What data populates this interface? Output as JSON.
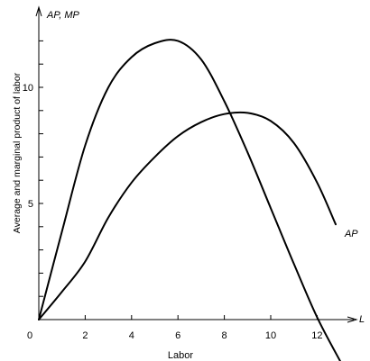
{
  "chart_data": {
    "type": "line",
    "title": "",
    "xlabel": "Labor",
    "ylabel": "Average and marginal product of labor",
    "x_axis_symbol": "L",
    "y_axis_symbol": "AP, MP",
    "origin_label": "0",
    "xlim": [
      0,
      14
    ],
    "ylim": [
      0,
      13
    ],
    "x_ticks": [
      2,
      4,
      6,
      8,
      10,
      12
    ],
    "x_tick_labels": [
      "2",
      "4",
      "6",
      "8",
      "10",
      "12"
    ],
    "y_ticks": [
      1,
      2,
      3,
      4,
      5,
      6,
      7,
      8,
      9,
      10,
      11,
      12
    ],
    "y_tick_labels": [
      "",
      "",
      "",
      "",
      "5",
      "",
      "",
      "",
      "",
      "10",
      "",
      ""
    ],
    "grid": false,
    "series": [
      {
        "name": "MP",
        "x": [
          0,
          1,
          2,
          3,
          4,
          5,
          6,
          7,
          8,
          9,
          10,
          11,
          12,
          13
        ],
        "y": [
          0,
          3.8,
          7.5,
          10.0,
          11.3,
          11.9,
          12.0,
          11.2,
          9.4,
          7.2,
          4.8,
          2.4,
          0.1,
          -1.8
        ]
      },
      {
        "name": "AP",
        "x": [
          0,
          1,
          2,
          3,
          4,
          5,
          6,
          7,
          8,
          9,
          10,
          11,
          12,
          12.8
        ],
        "y": [
          0,
          1.2,
          2.5,
          4.4,
          5.9,
          7.0,
          7.9,
          8.5,
          8.85,
          8.9,
          8.55,
          7.6,
          5.9,
          4.1
        ]
      }
    ]
  }
}
